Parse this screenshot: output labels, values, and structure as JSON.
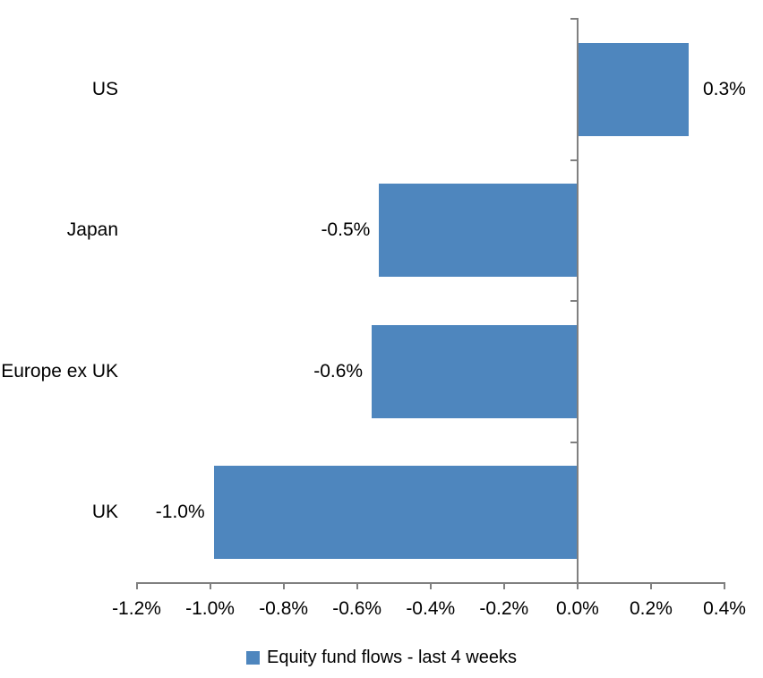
{
  "chart_data": {
    "type": "bar",
    "orientation": "horizontal",
    "title": "",
    "xlabel": "",
    "ylabel": "",
    "categories": [
      "US",
      "Japan",
      "Europe ex UK",
      "UK"
    ],
    "values": [
      0.3,
      -0.5,
      -0.6,
      -1.0
    ],
    "bar_extent_estimates": [
      0.3,
      -0.54,
      -0.56,
      -0.99
    ],
    "data_labels": [
      "0.3%",
      "-0.5%",
      "-0.6%",
      "-1.0%"
    ],
    "series_name": "Equity fund flows - last 4 weeks",
    "xlim": [
      -1.2,
      0.4
    ],
    "x_ticks": [
      -1.2,
      -1.0,
      -0.8,
      -0.6,
      -0.4,
      -0.2,
      0.0,
      0.2,
      0.4
    ],
    "x_tick_labels": [
      "-1.2%",
      "-1.0%",
      "-0.8%",
      "-0.6%",
      "-0.4%",
      "-0.2%",
      "0.0%",
      "0.2%",
      "0.4%"
    ],
    "grid": false,
    "legend_position": "bottom",
    "bar_color": "#4E86BE",
    "axis_color": "#808080",
    "text_color": "#000000",
    "background_color": "#FFFFFF"
  }
}
